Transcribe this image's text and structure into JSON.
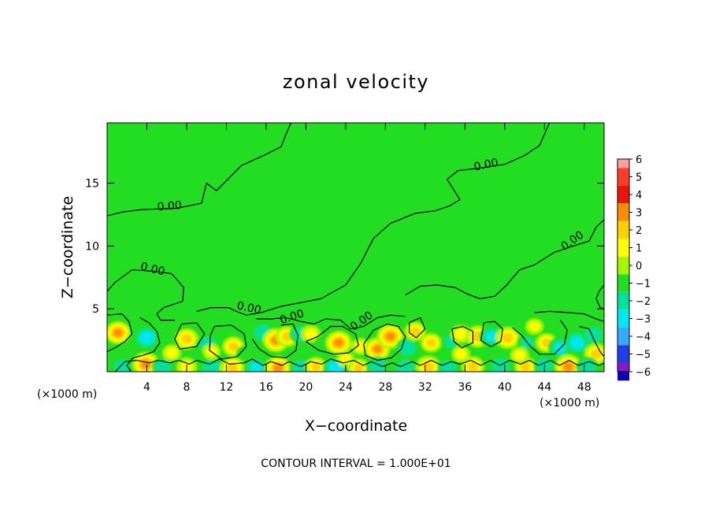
{
  "chart_data": {
    "type": "heatmap",
    "title": "zonal velocity",
    "xlabel": "X−coordinate",
    "ylabel": "Z−coordinate",
    "x_unit_left": "(×1000 m)",
    "x_unit_right": "(×1000 m)",
    "footer": "CONTOUR INTERVAL = 1.000E+01",
    "xlim": [
      0,
      50
    ],
    "ylim": [
      0,
      19.8
    ],
    "x_ticks": [
      4,
      8,
      12,
      16,
      20,
      24,
      28,
      32,
      36,
      40,
      44,
      48
    ],
    "y_ticks": [
      5,
      10,
      15
    ],
    "colorbar": {
      "ticks": [
        6,
        5,
        4,
        3,
        2,
        1,
        0,
        -1,
        -2,
        -3,
        -4,
        -5,
        -6
      ],
      "colors": [
        "#ff9f9f",
        "#ff3b2a",
        "#e8150a",
        "#ff8c00",
        "#ffd000",
        "#ffff00",
        "#aaf400",
        "#22dd22",
        "#00e29a",
        "#00e8ee",
        "#33aaff",
        "#1f3fe8",
        "#1200b8",
        "#8a18c8"
      ]
    },
    "background_color": "#22dd22",
    "contour_labels": [
      {
        "text": "0.00",
        "x": 6.3,
        "z": 12.9
      },
      {
        "text": "0.00",
        "x": 4.5,
        "z": 7.9
      },
      {
        "text": "0.00",
        "x": 14.2,
        "z": 4.8
      },
      {
        "text": "0.00",
        "x": 18.7,
        "z": 4.1
      },
      {
        "text": "0.00",
        "x": 25.8,
        "z": 3.8
      },
      {
        "text": "0.00",
        "x": 38.2,
        "z": 16.2
      },
      {
        "text": "0.00",
        "x": 47.0,
        "z": 10.2
      }
    ],
    "blobs": [
      {
        "x": 1.1,
        "z": 3.1,
        "v": 3.2
      },
      {
        "x": 4.0,
        "z": 2.7,
        "v": -3.2
      },
      {
        "x": 8.0,
        "z": 2.6,
        "v": 2.8
      },
      {
        "x": 10.1,
        "z": 2.2,
        "v": -2.4
      },
      {
        "x": 12.7,
        "z": 2.0,
        "v": 2.4
      },
      {
        "x": 13.9,
        "z": 1.4,
        "v": -1.6
      },
      {
        "x": 15.7,
        "z": 3.1,
        "v": -2.8
      },
      {
        "x": 17.0,
        "z": 2.5,
        "v": 3.4
      },
      {
        "x": 18.1,
        "z": 2.8,
        "v": 2.6
      },
      {
        "x": 19.4,
        "z": 3.0,
        "v": -2.2
      },
      {
        "x": 20.5,
        "z": 3.0,
        "v": 1.8
      },
      {
        "x": 21.8,
        "z": 2.2,
        "v": -1.6
      },
      {
        "x": 23.3,
        "z": 2.3,
        "v": 3.4
      },
      {
        "x": 25.5,
        "z": 2.0,
        "v": 1.6
      },
      {
        "x": 27.2,
        "z": 1.8,
        "v": 3.2
      },
      {
        "x": 28.5,
        "z": 2.8,
        "v": 3.6
      },
      {
        "x": 30.2,
        "z": 1.9,
        "v": -2.6
      },
      {
        "x": 31.0,
        "z": 3.2,
        "v": 2.2
      },
      {
        "x": 32.6,
        "z": 2.3,
        "v": 2.2
      },
      {
        "x": 34.6,
        "z": 2.4,
        "v": -2.0
      },
      {
        "x": 35.6,
        "z": 3.0,
        "v": 2.0
      },
      {
        "x": 37.3,
        "z": 2.8,
        "v": 3.0
      },
      {
        "x": 38.7,
        "z": 2.8,
        "v": -3.0
      },
      {
        "x": 40.3,
        "z": 2.7,
        "v": 3.0
      },
      {
        "x": 42.3,
        "z": 2.3,
        "v": -2.0
      },
      {
        "x": 44.2,
        "z": 2.3,
        "v": 2.2
      },
      {
        "x": 45.6,
        "z": 1.9,
        "v": -3.0
      },
      {
        "x": 47.3,
        "z": 2.3,
        "v": -3.2
      },
      {
        "x": 48.9,
        "z": 2.9,
        "v": -2.6
      },
      {
        "x": 49.2,
        "z": 1.4,
        "v": 2.8
      },
      {
        "x": 1.5,
        "z": 0.4,
        "v": -2.2
      },
      {
        "x": 3.9,
        "z": 0.6,
        "v": 3.6
      },
      {
        "x": 5.6,
        "z": 0.4,
        "v": -2.2
      },
      {
        "x": 8.0,
        "z": 0.4,
        "v": 2.0
      },
      {
        "x": 10.5,
        "z": 0.3,
        "v": -2.6
      },
      {
        "x": 12.6,
        "z": 0.3,
        "v": 3.0
      },
      {
        "x": 15.0,
        "z": 0.3,
        "v": -3.0
      },
      {
        "x": 17.2,
        "z": 0.3,
        "v": 3.4
      },
      {
        "x": 19.5,
        "z": 0.3,
        "v": -2.6
      },
      {
        "x": 21.0,
        "z": 0.4,
        "v": 2.2
      },
      {
        "x": 23.0,
        "z": 0.3,
        "v": -3.2
      },
      {
        "x": 25.3,
        "z": 0.3,
        "v": 2.2
      },
      {
        "x": 27.2,
        "z": 0.4,
        "v": -2.6
      },
      {
        "x": 30.0,
        "z": 0.3,
        "v": -2.8
      },
      {
        "x": 32.3,
        "z": 0.4,
        "v": 3.0
      },
      {
        "x": 34.3,
        "z": 0.3,
        "v": -2.2
      },
      {
        "x": 36.8,
        "z": 0.4,
        "v": 2.6
      },
      {
        "x": 39.6,
        "z": 0.4,
        "v": -2.8
      },
      {
        "x": 42.1,
        "z": 0.4,
        "v": 2.4
      },
      {
        "x": 44.0,
        "z": 0.5,
        "v": -2.4
      },
      {
        "x": 46.4,
        "z": 0.4,
        "v": 3.6
      },
      {
        "x": 48.3,
        "z": 0.4,
        "v": -2.4
      },
      {
        "x": 6.5,
        "z": 1.5,
        "v": 1.6
      },
      {
        "x": 10.5,
        "z": 1.6,
        "v": 1.4
      },
      {
        "x": 24.0,
        "z": 1.0,
        "v": 1.4
      },
      {
        "x": 35.6,
        "z": 1.4,
        "v": 1.5
      },
      {
        "x": 41.5,
        "z": 1.3,
        "v": 1.6
      },
      {
        "x": 43.0,
        "z": 3.6,
        "v": 1.4
      }
    ],
    "contour_lines": [
      [
        [
          0.0,
          12.4
        ],
        [
          1.5,
          12.7
        ],
        [
          3.5,
          12.9
        ],
        [
          7.0,
          13.0
        ],
        [
          9.5,
          13.4
        ],
        [
          10.0,
          15.0
        ],
        [
          11.0,
          14.4
        ],
        [
          13.5,
          16.4
        ],
        [
          16.0,
          17.3
        ],
        [
          17.5,
          17.9
        ],
        [
          18.0,
          18.9
        ],
        [
          18.5,
          19.8
        ]
      ],
      [
        [
          0.0,
          6.4
        ],
        [
          0.8,
          7.1
        ],
        [
          2.5,
          8.1
        ],
        [
          4.5,
          8.0
        ],
        [
          6.5,
          7.8
        ],
        [
          7.7,
          6.7
        ],
        [
          7.6,
          5.6
        ],
        [
          5.7,
          5.1
        ],
        [
          5.0,
          4.6
        ],
        [
          5.4,
          4.1
        ],
        [
          6.8,
          4.1
        ]
      ],
      [
        [
          9.0,
          4.8
        ],
        [
          10.5,
          5.1
        ],
        [
          12.2,
          5.1
        ],
        [
          13.0,
          4.8
        ],
        [
          14.0,
          4.5
        ],
        [
          15.5,
          4.7
        ],
        [
          17.5,
          5.2
        ],
        [
          19.5,
          5.5
        ],
        [
          21.5,
          5.8
        ],
        [
          24.0,
          6.9
        ],
        [
          25.5,
          8.6
        ],
        [
          26.8,
          10.6
        ],
        [
          28.5,
          11.8
        ],
        [
          31.0,
          12.6
        ],
        [
          33.0,
          12.8
        ],
        [
          34.5,
          13.2
        ],
        [
          35.5,
          13.7
        ],
        [
          34.2,
          15.3
        ],
        [
          35.3,
          16.0
        ],
        [
          37.5,
          16.2
        ],
        [
          40.0,
          16.5
        ],
        [
          42.0,
          17.2
        ],
        [
          43.5,
          18.0
        ],
        [
          44.5,
          19.8
        ]
      ],
      [
        [
          15.0,
          4.2
        ],
        [
          16.5,
          4.2
        ],
        [
          18.0,
          4.3
        ],
        [
          19.5,
          4.0
        ],
        [
          20.8,
          3.8
        ],
        [
          22.0,
          4.2
        ],
        [
          23.5,
          4.1
        ],
        [
          24.5,
          3.4
        ],
        [
          25.8,
          3.6
        ],
        [
          27.2,
          4.3
        ],
        [
          28.5,
          4.5
        ],
        [
          30.0,
          4.4
        ]
      ],
      [
        [
          30.0,
          6.1
        ],
        [
          31.5,
          6.8
        ],
        [
          33.2,
          6.9
        ],
        [
          35.0,
          6.7
        ],
        [
          36.2,
          6.2
        ],
        [
          37.5,
          5.8
        ],
        [
          39.0,
          6.0
        ],
        [
          40.2,
          6.9
        ],
        [
          41.5,
          8.1
        ],
        [
          43.0,
          8.5
        ],
        [
          45.0,
          9.5
        ],
        [
          46.5,
          9.9
        ],
        [
          48.5,
          10.4
        ],
        [
          49.2,
          11.5
        ],
        [
          50.0,
          12.1
        ]
      ],
      [
        [
          43.0,
          4.7
        ],
        [
          44.5,
          4.8
        ],
        [
          46.5,
          4.7
        ],
        [
          48.0,
          4.6
        ],
        [
          49.2,
          4.2
        ],
        [
          50.0,
          4.0
        ]
      ],
      [
        [
          50.0,
          6.9
        ],
        [
          49.5,
          6.4
        ],
        [
          49.2,
          5.8
        ],
        [
          49.6,
          5.1
        ],
        [
          50.0,
          5.0
        ]
      ],
      [
        [
          0.0,
          4.5
        ],
        [
          1.5,
          4.6
        ],
        [
          2.2,
          4.0
        ],
        [
          2.5,
          3.0
        ],
        [
          1.8,
          2.4
        ],
        [
          0.8,
          1.9
        ],
        [
          0.0,
          1.6
        ]
      ],
      [
        [
          3.3,
          4.3
        ],
        [
          4.2,
          3.9
        ],
        [
          5.0,
          3.2
        ],
        [
          5.3,
          2.3
        ],
        [
          4.7,
          1.6
        ],
        [
          3.6,
          1.3
        ],
        [
          2.6,
          1.1
        ],
        [
          2.0,
          0.5
        ],
        [
          2.4,
          0.0
        ]
      ],
      [
        [
          7.5,
          3.8
        ],
        [
          9.0,
          3.9
        ],
        [
          9.8,
          3.0
        ],
        [
          9.0,
          2.0
        ],
        [
          7.3,
          1.8
        ],
        [
          6.8,
          2.6
        ],
        [
          7.5,
          3.8
        ]
      ],
      [
        [
          10.8,
          3.6
        ],
        [
          12.5,
          3.7
        ],
        [
          13.8,
          3.0
        ],
        [
          14.0,
          2.0
        ],
        [
          13.1,
          1.2
        ],
        [
          11.5,
          1.0
        ],
        [
          10.3,
          1.7
        ],
        [
          10.4,
          2.9
        ],
        [
          10.8,
          3.6
        ]
      ],
      [
        [
          14.6,
          2.6
        ],
        [
          15.3,
          1.8
        ],
        [
          16.5,
          1.2
        ],
        [
          18.0,
          1.1
        ],
        [
          19.0,
          1.7
        ],
        [
          19.2,
          2.9
        ],
        [
          18.7,
          3.8
        ],
        [
          17.5,
          3.7
        ]
      ],
      [
        [
          20.0,
          2.4
        ],
        [
          21.2,
          2.8
        ],
        [
          22.5,
          3.6
        ],
        [
          23.7,
          3.6
        ],
        [
          25.0,
          3.0
        ],
        [
          25.3,
          2.1
        ],
        [
          24.3,
          1.5
        ],
        [
          22.8,
          1.4
        ],
        [
          21.3,
          1.7
        ],
        [
          20.0,
          2.4
        ]
      ],
      [
        [
          25.8,
          2.2
        ],
        [
          26.8,
          3.3
        ],
        [
          28.2,
          3.8
        ],
        [
          29.3,
          3.6
        ],
        [
          30.0,
          2.8
        ],
        [
          29.6,
          1.8
        ],
        [
          28.6,
          1.1
        ],
        [
          27.2,
          0.9
        ],
        [
          26.0,
          1.3
        ],
        [
          25.8,
          2.2
        ]
      ],
      [
        [
          30.4,
          3.9
        ],
        [
          31.5,
          4.3
        ],
        [
          32.0,
          3.4
        ],
        [
          31.1,
          2.7
        ],
        [
          30.4,
          3.1
        ],
        [
          30.4,
          3.9
        ]
      ],
      [
        [
          34.7,
          3.4
        ],
        [
          35.8,
          3.6
        ],
        [
          36.8,
          3.2
        ],
        [
          36.8,
          2.3
        ],
        [
          35.7,
          1.9
        ],
        [
          34.9,
          2.4
        ],
        [
          34.7,
          3.4
        ]
      ],
      [
        [
          37.9,
          3.9
        ],
        [
          39.0,
          4.0
        ],
        [
          39.8,
          3.4
        ],
        [
          39.6,
          2.4
        ],
        [
          38.6,
          2.0
        ],
        [
          37.6,
          2.5
        ],
        [
          37.9,
          3.9
        ]
      ],
      [
        [
          40.8,
          3.5
        ],
        [
          41.7,
          2.9
        ],
        [
          42.6,
          2.0
        ],
        [
          43.5,
          1.4
        ],
        [
          45.0,
          1.4
        ],
        [
          46.0,
          2.2
        ],
        [
          46.3,
          3.3
        ],
        [
          45.6,
          4.1
        ]
      ],
      [
        [
          47.5,
          3.6
        ],
        [
          48.5,
          3.4
        ],
        [
          49.0,
          2.5
        ],
        [
          49.6,
          1.6
        ],
        [
          50.0,
          1.2
        ]
      ],
      [
        [
          0.8,
          0.0
        ],
        [
          1.8,
          0.8
        ],
        [
          3.0,
          0.9
        ],
        [
          4.2,
          0.7
        ],
        [
          5.2,
          0.9
        ],
        [
          6.3,
          0.7
        ],
        [
          7.2,
          0.9
        ],
        [
          8.3,
          0.6
        ],
        [
          9.0,
          0.9
        ],
        [
          10.3,
          0.6
        ],
        [
          11.3,
          1.0
        ],
        [
          12.3,
          0.6
        ],
        [
          13.8,
          0.7
        ],
        [
          14.6,
          1.0
        ],
        [
          15.7,
          0.5
        ],
        [
          16.5,
          0.8
        ],
        [
          17.6,
          0.5
        ],
        [
          18.3,
          0.8
        ],
        [
          19.5,
          0.4
        ],
        [
          20.5,
          0.8
        ],
        [
          21.6,
          0.6
        ],
        [
          22.5,
          1.0
        ],
        [
          23.8,
          0.7
        ],
        [
          24.8,
          0.9
        ],
        [
          25.8,
          0.5
        ],
        [
          26.6,
          0.8
        ],
        [
          27.7,
          0.4
        ],
        [
          28.7,
          0.7
        ],
        [
          29.5,
          0.4
        ],
        [
          30.7,
          0.8
        ],
        [
          31.5,
          0.5
        ],
        [
          32.6,
          0.9
        ],
        [
          33.7,
          0.5
        ],
        [
          34.6,
          0.8
        ],
        [
          35.5,
          0.6
        ],
        [
          36.6,
          0.9
        ],
        [
          37.6,
          0.5
        ],
        [
          38.6,
          0.9
        ],
        [
          39.5,
          0.5
        ],
        [
          40.5,
          0.9
        ],
        [
          41.6,
          0.6
        ],
        [
          42.5,
          0.9
        ],
        [
          43.4,
          0.5
        ],
        [
          44.6,
          0.9
        ],
        [
          45.5,
          0.5
        ],
        [
          46.5,
          0.9
        ],
        [
          47.4,
          0.5
        ],
        [
          48.5,
          0.8
        ],
        [
          49.5,
          0.5
        ],
        [
          50.0,
          0.7
        ]
      ]
    ]
  }
}
